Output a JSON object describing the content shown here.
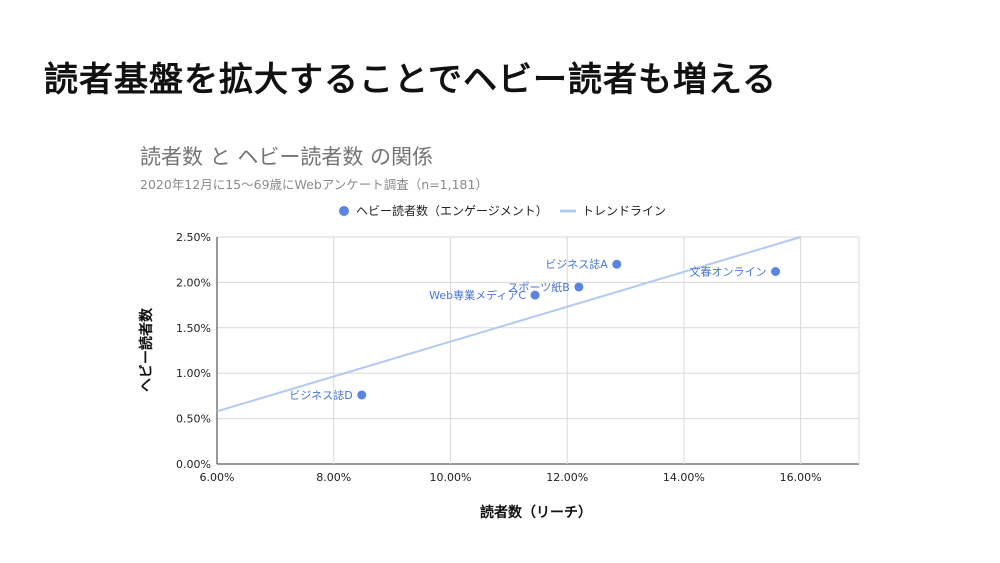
{
  "slide": {
    "title": "読者基盤を拡大することでヘビー読者も増える"
  },
  "chart_data": {
    "type": "scatter",
    "title": "読者数 と ヘビー読者数 の関係",
    "subtitle": "2020年12月に15〜69歳にWebアンケート調査（n=1,181）",
    "xlabel": "読者数（リーチ）",
    "ylabel": "ヘビー読者数",
    "xlim": [
      0.06,
      0.17
    ],
    "ylim": [
      0.0,
      0.025
    ],
    "x_ticks": [
      0.06,
      0.08,
      0.1,
      0.12,
      0.14,
      0.16
    ],
    "x_tick_labels": [
      "6.00%",
      "8.00%",
      "10.00%",
      "12.00%",
      "14.00%",
      "16.00%"
    ],
    "y_ticks": [
      0.0,
      0.005,
      0.01,
      0.015,
      0.02,
      0.025
    ],
    "y_tick_labels": [
      "0.00%",
      "0.50%",
      "1.00%",
      "1.50%",
      "2.00%",
      "2.50%"
    ],
    "grid": true,
    "legend_position": "top",
    "legend": [
      {
        "label": "ヘビー読者数（エンゲージメント）",
        "marker": "dot",
        "color": "#5b84e0"
      },
      {
        "label": "トレンドライン",
        "marker": "line",
        "color": "#b4c9ef"
      }
    ],
    "series": [
      {
        "name": "ヘビー読者数（エンゲージメント）",
        "color": "#5b84e0",
        "points": [
          {
            "label": "ビジネス誌A",
            "x": 0.1285,
            "y": 0.022
          },
          {
            "label": "文春オンライン",
            "x": 0.1557,
            "y": 0.0212
          },
          {
            "label": "スポーツ紙B",
            "x": 0.122,
            "y": 0.0195
          },
          {
            "label": "Web専業メディアC",
            "x": 0.1145,
            "y": 0.0186
          },
          {
            "label": "ビジネス誌D",
            "x": 0.0848,
            "y": 0.0076
          }
        ]
      }
    ],
    "trendline": {
      "name": "トレンドライン",
      "color": "#b4c9ef",
      "x": [
        0.06,
        0.16
      ],
      "y": [
        0.0058,
        0.025
      ]
    }
  }
}
